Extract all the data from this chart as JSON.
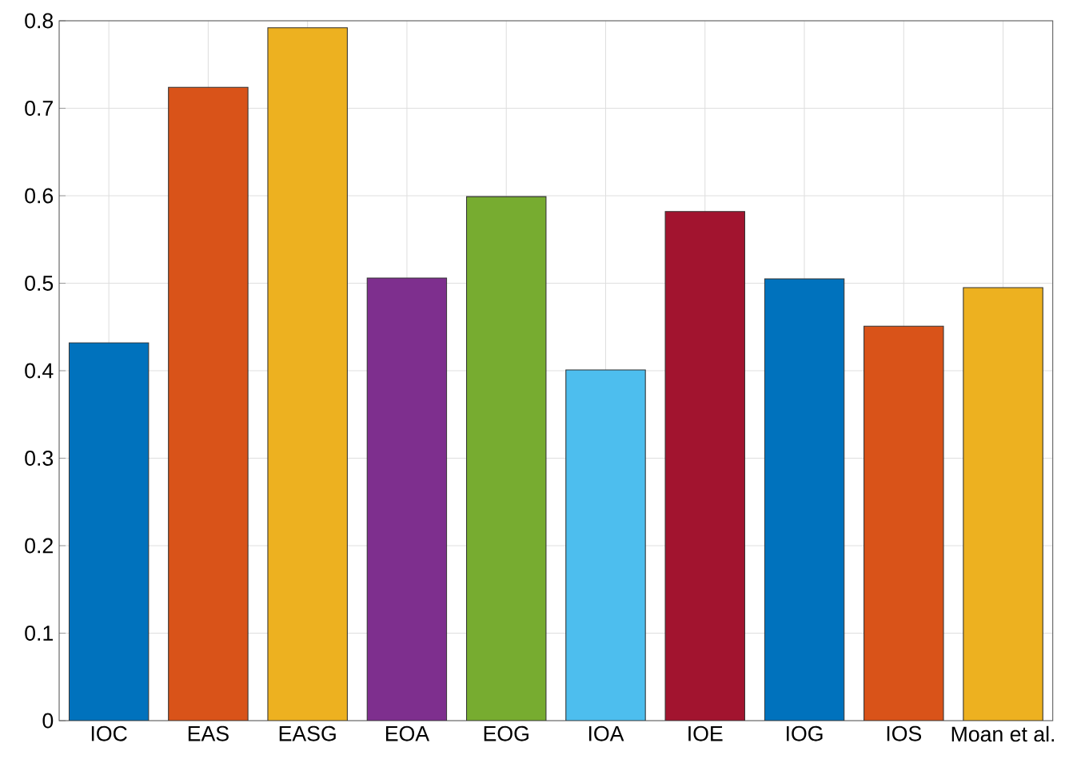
{
  "chart_data": {
    "type": "bar",
    "categories": [
      "IOC",
      "EAS",
      "EASG",
      "EOA",
      "EOG",
      "IOA",
      "IOE",
      "IOG",
      "IOS",
      "Moan et al."
    ],
    "values": [
      0.432,
      0.724,
      0.792,
      0.506,
      0.599,
      0.401,
      0.582,
      0.505,
      0.451,
      0.495
    ],
    "colors": [
      "#0072bd",
      "#d95319",
      "#edb120",
      "#7e2f8e",
      "#77ac30",
      "#4dbeee",
      "#a2142f",
      "#0072bd",
      "#d95319",
      "#edb120"
    ],
    "ylim": [
      0,
      0.8
    ],
    "yticks": [
      0,
      0.1,
      0.2,
      0.3,
      0.4,
      0.5,
      0.6,
      0.7,
      0.8
    ],
    "grid": true
  }
}
